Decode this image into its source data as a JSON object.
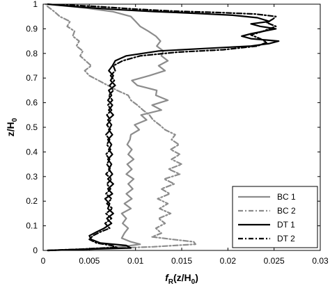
{
  "chart_data": {
    "type": "line",
    "title": "",
    "xlabel": {
      "main": "f",
      "sub1": "R",
      "mid": "(z/H",
      "sub2": "0",
      "end": ")"
    },
    "ylabel": {
      "main": "z/H",
      "sub": "0"
    },
    "xlim": [
      0,
      0.03
    ],
    "ylim": [
      0,
      1
    ],
    "xticks": [
      0,
      0.005,
      0.01,
      0.015,
      0.02,
      0.025,
      0.03
    ],
    "xtick_labels": [
      "0",
      "0.005",
      "0.01",
      "0.015",
      "0.02",
      "0.025",
      "0.03"
    ],
    "yticks": [
      0,
      0.1,
      0.2,
      0.3,
      0.4,
      0.5,
      0.6,
      0.7,
      0.8,
      0.9,
      1
    ],
    "ytick_labels": [
      "0",
      "0.1",
      "0.2",
      "0.3",
      "0.4",
      "0.5",
      "0.6",
      "0.7",
      "0.8",
      "0.9",
      "1"
    ],
    "grid": false,
    "legend_position": "bottom-right",
    "series": [
      {
        "name": "BC 1",
        "color": "#8c8c8c",
        "dash": "solid",
        "points": [
          [
            0.0005,
            0.0
          ],
          [
            0.004,
            0.005
          ],
          [
            0.0085,
            0.015
          ],
          [
            0.0105,
            0.025
          ],
          [
            0.0095,
            0.035
          ],
          [
            0.0085,
            0.05
          ],
          [
            0.0088,
            0.07
          ],
          [
            0.0092,
            0.09
          ],
          [
            0.0086,
            0.11
          ],
          [
            0.009,
            0.13
          ],
          [
            0.0085,
            0.15
          ],
          [
            0.0095,
            0.17
          ],
          [
            0.0088,
            0.19
          ],
          [
            0.0096,
            0.21
          ],
          [
            0.009,
            0.23
          ],
          [
            0.0097,
            0.25
          ],
          [
            0.0092,
            0.27
          ],
          [
            0.0098,
            0.29
          ],
          [
            0.009,
            0.31
          ],
          [
            0.0096,
            0.33
          ],
          [
            0.0091,
            0.35
          ],
          [
            0.0098,
            0.37
          ],
          [
            0.0092,
            0.39
          ],
          [
            0.0096,
            0.41
          ],
          [
            0.0091,
            0.43
          ],
          [
            0.0094,
            0.45
          ],
          [
            0.0095,
            0.47
          ],
          [
            0.0104,
            0.49
          ],
          [
            0.0099,
            0.51
          ],
          [
            0.0112,
            0.53
          ],
          [
            0.0106,
            0.55
          ],
          [
            0.0128,
            0.57
          ],
          [
            0.0118,
            0.59
          ],
          [
            0.0135,
            0.61
          ],
          [
            0.0122,
            0.63
          ],
          [
            0.0123,
            0.65
          ],
          [
            0.0102,
            0.67
          ],
          [
            0.0096,
            0.69
          ],
          [
            0.0115,
            0.71
          ],
          [
            0.0132,
            0.73
          ],
          [
            0.0125,
            0.75
          ],
          [
            0.0135,
            0.77
          ],
          [
            0.0128,
            0.79
          ],
          [
            0.013,
            0.81
          ],
          [
            0.0123,
            0.83
          ],
          [
            0.0127,
            0.85
          ],
          [
            0.0122,
            0.87
          ],
          [
            0.0114,
            0.89
          ],
          [
            0.0105,
            0.91
          ],
          [
            0.01,
            0.93
          ],
          [
            0.0095,
            0.95
          ],
          [
            0.0075,
            0.97
          ],
          [
            0.0045,
            0.985
          ],
          [
            0.0005,
            1.0
          ]
        ]
      },
      {
        "name": "BC 2",
        "color": "#8c8c8c",
        "dash": "7,3,2,3",
        "points": [
          [
            0.0005,
            0.0
          ],
          [
            0.005,
            0.005
          ],
          [
            0.012,
            0.015
          ],
          [
            0.0165,
            0.025
          ],
          [
            0.0163,
            0.035
          ],
          [
            0.014,
            0.045
          ],
          [
            0.0118,
            0.055
          ],
          [
            0.0128,
            0.07
          ],
          [
            0.0122,
            0.09
          ],
          [
            0.0132,
            0.11
          ],
          [
            0.0125,
            0.13
          ],
          [
            0.0138,
            0.15
          ],
          [
            0.0126,
            0.17
          ],
          [
            0.0135,
            0.19
          ],
          [
            0.0124,
            0.21
          ],
          [
            0.0137,
            0.23
          ],
          [
            0.0128,
            0.25
          ],
          [
            0.0142,
            0.27
          ],
          [
            0.0131,
            0.29
          ],
          [
            0.0148,
            0.31
          ],
          [
            0.0136,
            0.33
          ],
          [
            0.015,
            0.35
          ],
          [
            0.0139,
            0.37
          ],
          [
            0.0148,
            0.39
          ],
          [
            0.0138,
            0.41
          ],
          [
            0.0147,
            0.43
          ],
          [
            0.0139,
            0.45
          ],
          [
            0.0143,
            0.47
          ],
          [
            0.0132,
            0.49
          ],
          [
            0.0126,
            0.51
          ],
          [
            0.0119,
            0.53
          ],
          [
            0.0115,
            0.55
          ],
          [
            0.0108,
            0.57
          ],
          [
            0.0102,
            0.59
          ],
          [
            0.0095,
            0.61
          ],
          [
            0.0092,
            0.63
          ],
          [
            0.008,
            0.65
          ],
          [
            0.007,
            0.67
          ],
          [
            0.006,
            0.69
          ],
          [
            0.005,
            0.71
          ],
          [
            0.0045,
            0.73
          ],
          [
            0.0052,
            0.75
          ],
          [
            0.0046,
            0.77
          ],
          [
            0.004,
            0.79
          ],
          [
            0.0043,
            0.81
          ],
          [
            0.0036,
            0.83
          ],
          [
            0.0039,
            0.85
          ],
          [
            0.0032,
            0.87
          ],
          [
            0.0034,
            0.89
          ],
          [
            0.0026,
            0.91
          ],
          [
            0.0029,
            0.93
          ],
          [
            0.0018,
            0.95
          ],
          [
            0.0012,
            0.97
          ],
          [
            0.0005,
            0.99
          ],
          [
            0.0003,
            1.0
          ]
        ]
      },
      {
        "name": "DT 1",
        "color": "#000000",
        "dash": "solid",
        "points": [
          [
            0.0005,
            0.0
          ],
          [
            0.005,
            0.005
          ],
          [
            0.0095,
            0.01
          ],
          [
            0.009,
            0.02
          ],
          [
            0.0062,
            0.03
          ],
          [
            0.0052,
            0.045
          ],
          [
            0.005,
            0.06
          ],
          [
            0.0058,
            0.075
          ],
          [
            0.0066,
            0.09
          ],
          [
            0.0074,
            0.11
          ],
          [
            0.0069,
            0.13
          ],
          [
            0.0076,
            0.15
          ],
          [
            0.007,
            0.17
          ],
          [
            0.0072,
            0.19
          ],
          [
            0.0067,
            0.21
          ],
          [
            0.0075,
            0.23
          ],
          [
            0.007,
            0.25
          ],
          [
            0.0076,
            0.27
          ],
          [
            0.007,
            0.29
          ],
          [
            0.0075,
            0.31
          ],
          [
            0.0071,
            0.33
          ],
          [
            0.0074,
            0.35
          ],
          [
            0.007,
            0.37
          ],
          [
            0.0075,
            0.39
          ],
          [
            0.0071,
            0.41
          ],
          [
            0.0074,
            0.43
          ],
          [
            0.007,
            0.45
          ],
          [
            0.0075,
            0.47
          ],
          [
            0.0071,
            0.49
          ],
          [
            0.0074,
            0.51
          ],
          [
            0.007,
            0.53
          ],
          [
            0.0076,
            0.55
          ],
          [
            0.0071,
            0.57
          ],
          [
            0.0075,
            0.59
          ],
          [
            0.007,
            0.61
          ],
          [
            0.0074,
            0.63
          ],
          [
            0.0071,
            0.65
          ],
          [
            0.0078,
            0.67
          ],
          [
            0.0073,
            0.69
          ],
          [
            0.0076,
            0.71
          ],
          [
            0.0071,
            0.73
          ],
          [
            0.0075,
            0.75
          ],
          [
            0.0078,
            0.77
          ],
          [
            0.009,
            0.79
          ],
          [
            0.0125,
            0.81
          ],
          [
            0.0175,
            0.82
          ],
          [
            0.0225,
            0.83
          ],
          [
            0.0245,
            0.84
          ],
          [
            0.0255,
            0.85
          ],
          [
            0.0225,
            0.86
          ],
          [
            0.0215,
            0.87
          ],
          [
            0.0225,
            0.88
          ],
          [
            0.0252,
            0.9
          ],
          [
            0.0235,
            0.91
          ],
          [
            0.0225,
            0.92
          ],
          [
            0.0245,
            0.93
          ],
          [
            0.0232,
            0.945
          ],
          [
            0.0205,
            0.955
          ],
          [
            0.017,
            0.962
          ],
          [
            0.012,
            0.97
          ],
          [
            0.008,
            0.978
          ],
          [
            0.004,
            0.988
          ],
          [
            0.0005,
            1.0
          ]
        ]
      },
      {
        "name": "DT 2",
        "color": "#000000",
        "dash": "7,3,2,3",
        "points": [
          [
            0.0005,
            0.0
          ],
          [
            0.004,
            0.005
          ],
          [
            0.008,
            0.012
          ],
          [
            0.0074,
            0.02
          ],
          [
            0.0058,
            0.03
          ],
          [
            0.005,
            0.045
          ],
          [
            0.0054,
            0.06
          ],
          [
            0.0062,
            0.075
          ],
          [
            0.0072,
            0.09
          ],
          [
            0.0067,
            0.11
          ],
          [
            0.0074,
            0.13
          ],
          [
            0.0068,
            0.15
          ],
          [
            0.0075,
            0.17
          ],
          [
            0.0069,
            0.19
          ],
          [
            0.0074,
            0.21
          ],
          [
            0.0068,
            0.23
          ],
          [
            0.0073,
            0.25
          ],
          [
            0.0069,
            0.27
          ],
          [
            0.0074,
            0.29
          ],
          [
            0.0068,
            0.31
          ],
          [
            0.0073,
            0.33
          ],
          [
            0.0069,
            0.35
          ],
          [
            0.0072,
            0.37
          ],
          [
            0.0068,
            0.39
          ],
          [
            0.0073,
            0.41
          ],
          [
            0.0069,
            0.43
          ],
          [
            0.0072,
            0.45
          ],
          [
            0.0068,
            0.47
          ],
          [
            0.0073,
            0.49
          ],
          [
            0.0069,
            0.51
          ],
          [
            0.0073,
            0.53
          ],
          [
            0.0069,
            0.55
          ],
          [
            0.0074,
            0.57
          ],
          [
            0.007,
            0.59
          ],
          [
            0.0075,
            0.61
          ],
          [
            0.0071,
            0.63
          ],
          [
            0.0076,
            0.65
          ],
          [
            0.0072,
            0.67
          ],
          [
            0.0077,
            0.69
          ],
          [
            0.0073,
            0.71
          ],
          [
            0.0078,
            0.73
          ],
          [
            0.0076,
            0.75
          ],
          [
            0.0086,
            0.77
          ],
          [
            0.0105,
            0.79
          ],
          [
            0.0145,
            0.805
          ],
          [
            0.0195,
            0.815
          ],
          [
            0.0232,
            0.83
          ],
          [
            0.0242,
            0.845
          ],
          [
            0.0235,
            0.86
          ],
          [
            0.0225,
            0.875
          ],
          [
            0.0238,
            0.89
          ],
          [
            0.0252,
            0.91
          ],
          [
            0.0242,
            0.925
          ],
          [
            0.0249,
            0.94
          ],
          [
            0.0252,
            0.95
          ],
          [
            0.023,
            0.96
          ],
          [
            0.019,
            0.966
          ],
          [
            0.014,
            0.972
          ],
          [
            0.01,
            0.98
          ],
          [
            0.006,
            0.99
          ],
          [
            0.002,
            0.998
          ]
        ]
      }
    ]
  }
}
